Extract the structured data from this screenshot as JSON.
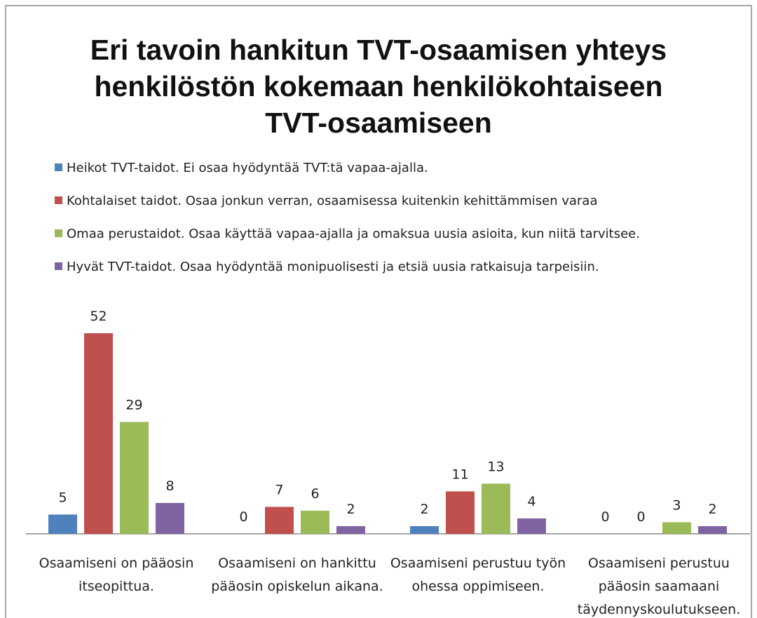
{
  "chart_data": {
    "type": "bar",
    "title": "Eri tavoin hankitun TVT-osaamisen yhteys henkilöstön kokemaan henkilökohtaiseen TVT-osaamiseen",
    "categories": [
      "Osaamiseni on pääosin itseopittua.",
      "Osaamiseni on hankittu pääosin opiskelun aikana.",
      "Osaamiseni perustuu työn ohessa oppimiseen.",
      "Osaamiseni perustuu pääosin saamaani täydennyskoulutukseen."
    ],
    "series": [
      {
        "name": "Heikot TVT-taidot. Ei osaa hyödyntää TVT:tä vapaa-ajalla.",
        "color": "#4f81bd",
        "values": [
          5,
          0,
          2,
          0
        ]
      },
      {
        "name": "Kohtalaiset taidot. Osaa jonkun verran, osaamisessa kuitenkin kehittämmisen varaa",
        "color": "#c0504d",
        "values": [
          52,
          7,
          11,
          0
        ]
      },
      {
        "name": "Omaa perustaidot. Osaa käyttää vapaa-ajalla ja omaksua uusia asioita, kun niitä tarvitsee.",
        "color": "#9bbb59",
        "values": [
          29,
          6,
          13,
          3
        ]
      },
      {
        "name": "Hyvät TVT-taidot. Osaa hyödyntää monipuolisesti ja etsiä uusia ratkaisuja tarpeisiin.",
        "color": "#8064a2",
        "values": [
          8,
          2,
          4,
          2
        ]
      }
    ],
    "ylim": [
      0,
      60
    ],
    "legend": "top"
  }
}
